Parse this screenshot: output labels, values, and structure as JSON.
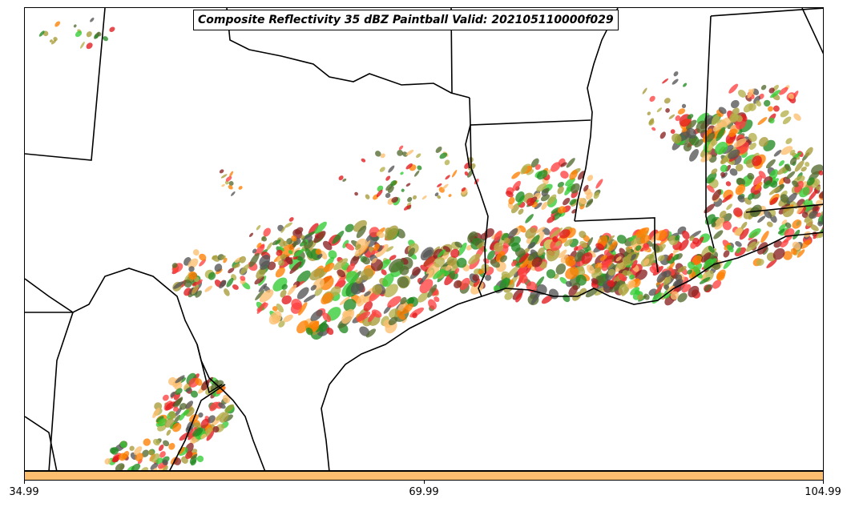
{
  "title": "Composite Reflectivity 35 dBZ Paintball Valid: 202105110000f029",
  "colorbar": {
    "color": "#fdbf6f",
    "ticks": [
      "34.99",
      "69.99",
      "104.99"
    ]
  },
  "member_colors": [
    "#ff4040",
    "#e31a1c",
    "#ff7f00",
    "#fdbf6f",
    "#33cc33",
    "#228b22",
    "#8b2323",
    "#a89b3a",
    "#556b2f",
    "#555555",
    "#b5b04a"
  ],
  "map": {
    "features": [
      "state-boundaries",
      "coastline",
      "rivers"
    ]
  }
}
